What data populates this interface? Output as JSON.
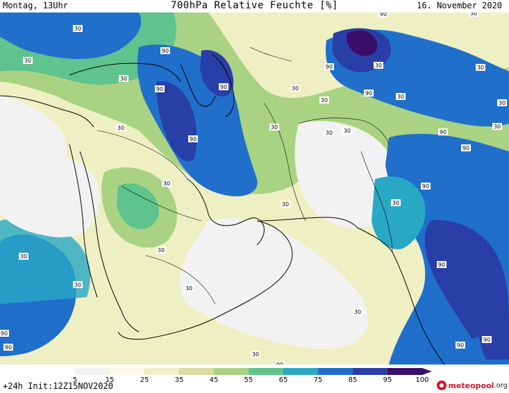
{
  "header": {
    "left": "Montag, 13Uhr",
    "title": "700hPa Relative Feuchte [%]",
    "right": "16. November 2020"
  },
  "footer": {
    "left": "+24h Init:12Z15NOV2020"
  },
  "logo": {
    "name": "meteopool",
    "tld": ".org"
  },
  "legend": {
    "ticks": [
      "5",
      "15",
      "25",
      "35",
      "45",
      "55",
      "65",
      "75",
      "85",
      "95",
      "100"
    ],
    "colors": [
      "#f2f2f2",
      "#fbfbe8",
      "#eef0c4",
      "#d8dca2",
      "#a9d383",
      "#5fc38d",
      "#29a8c4",
      "#1f6fcb",
      "#2a3ea7",
      "#3a0e6b"
    ]
  },
  "map": {
    "contour_labels": [
      "30",
      "90"
    ],
    "colors": {
      "very_dry": "#f2f2f2",
      "dry": "#fbfbe8",
      "tan": "#eef0c4",
      "olive": "#d8dca2",
      "green": "#a9d383",
      "teal": "#5fc38d",
      "cyan": "#29a8c4",
      "blue": "#1f6fcb",
      "navy": "#2a3ea7",
      "purple": "#3a0e6b"
    }
  }
}
